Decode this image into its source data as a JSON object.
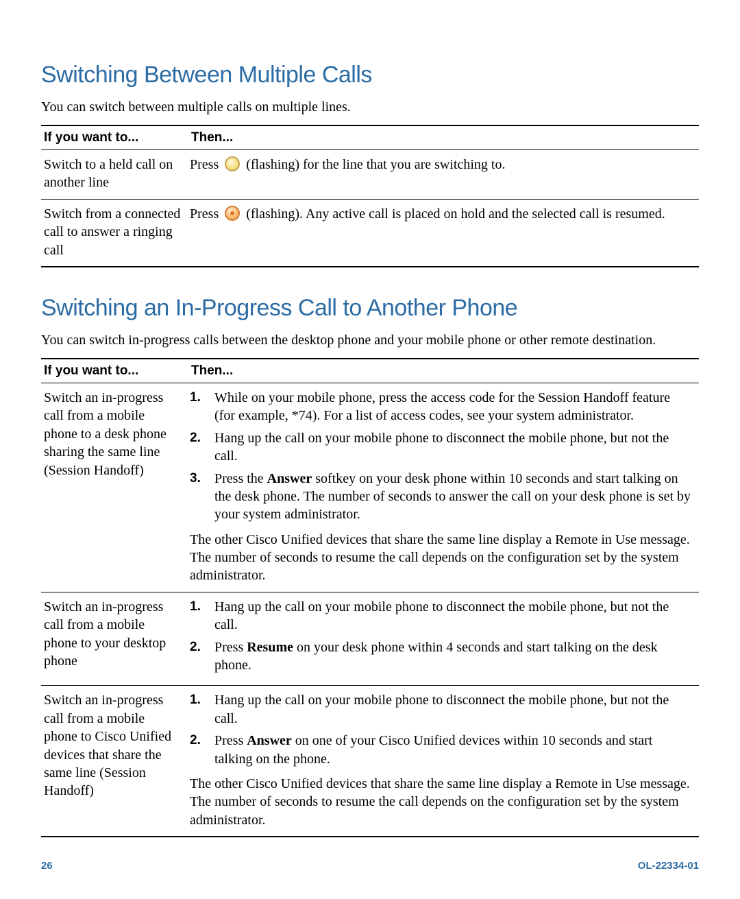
{
  "colors": {
    "heading": "#2c6ca5",
    "text": "#000000",
    "background": "#ffffff",
    "footer": "#2c6ca5",
    "rule_heavy": "#000000"
  },
  "typography": {
    "heading_family": "Arial",
    "heading_size_pt": 26,
    "body_family": "Georgia",
    "body_size_pt": 15
  },
  "section1": {
    "heading": "Switching Between Multiple Calls",
    "intro": "You can switch between multiple calls on multiple lines.",
    "table": {
      "col1_header": "If you want to...",
      "col2_header": "Then...",
      "rows": [
        {
          "want": "Switch to a held call on another line",
          "then_prefix": "Press ",
          "icon": "hold",
          "then_suffix": " (flashing) for the line that you are switching to."
        },
        {
          "want": "Switch from a connected call to answer a ringing call",
          "then_prefix": "Press ",
          "icon": "resume",
          "then_suffix": " (flashing). Any active call is placed on hold and the selected call is resumed."
        }
      ]
    }
  },
  "section2": {
    "heading": "Switching an In-Progress Call to Another Phone",
    "intro": "You can switch in-progress calls between the desktop phone and your mobile phone or other remote destination.",
    "table": {
      "col1_header": "If you want to...",
      "col2_header": "Then...",
      "rows": [
        {
          "want": "Switch an in-progress call from a mobile phone to a desk phone sharing the same line (Session Handoff)",
          "steps": [
            "While on your mobile phone, press the access code for the Session Handoff feature (for example, *74). For a list of access codes, see your system administrator.",
            "Hang up the call on your mobile phone to disconnect the mobile phone, but not the call.",
            {
              "pre": "Press the ",
              "bold": "Answer",
              "post": " softkey on your desk phone within 10 seconds and start talking on the desk phone. The number of seconds to answer the call on your desk phone is set by your system administrator."
            }
          ],
          "note": "The other Cisco Unified devices that share the same line display a Remote in Use message. The number of seconds to resume the call depends on the configuration set by the system administrator."
        },
        {
          "want": "Switch an in-progress call from a mobile phone to your desktop phone",
          "steps": [
            "Hang up the call on your mobile phone to disconnect the mobile phone, but not the call.",
            {
              "pre": "Press ",
              "bold": "Resume",
              "post": " on your desk phone within 4 seconds and start talking on the desk phone."
            }
          ]
        },
        {
          "want": "Switch an in-progress call from a mobile phone to Cisco Unified devices that share the same line (Session Handoff)",
          "steps": [
            "Hang up the call on your mobile phone to disconnect the mobile phone, but not the call.",
            {
              "pre": "Press ",
              "bold": "Answer",
              "post": " on one of your Cisco Unified devices within 10 seconds and start talking on the phone."
            }
          ],
          "note": "The other Cisco Unified devices that share the same line display a Remote in Use message. The number of seconds to resume the call depends on the configuration set by the system administrator."
        }
      ]
    }
  },
  "footer": {
    "page": "26",
    "doc_id": "OL-22334-01"
  }
}
